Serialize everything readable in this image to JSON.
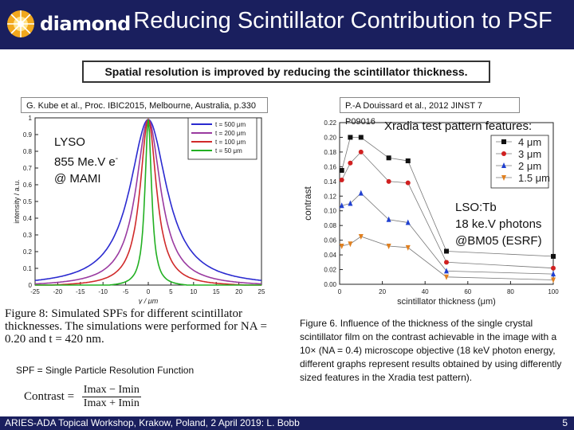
{
  "header": {
    "logo_text": "diamond",
    "title": "Reducing Scintillator Contribution to PSF"
  },
  "subtitle": "Spatial resolution is improved by reducing the scintillator thickness.",
  "left_panel": {
    "citation": "G. Kube et al., Proc. IBIC2015, Melbourne, Australia, p.330",
    "overlay_label": {
      "line1": "LYSO",
      "line2": "855 Me.V e",
      "line2_sup": "-",
      "line3": "@ MAMI"
    },
    "figure_caption": "Figure 8: Simulated SPFs for different scintillator thicknesses. The simulations were performed for NA = 0.20 and t = 420 nm.",
    "spf_definition": "SPF = Single Particle Resolution Function",
    "formula": {
      "lhs": "Contrast =",
      "numerator": "Imax − Imin",
      "denominator": "Imax + Imin"
    }
  },
  "right_panel": {
    "citation": "P.-A Douissard et al., 2012 JINST 7 P09016",
    "overlay_title": "Xradia test pattern features:",
    "overlay_label": {
      "line1": "LSO:Tb",
      "line2": "18 ke.V photons",
      "line3": "@BM05 (ESRF)"
    },
    "caption": "Figure 6. Influence of the thickness of the single crystal scintillator film on the contrast achievable in the image with a 10× (NA = 0.4) microscope objective (18 keV photon energy, different graphs represent results obtained by using differently sized features in the Xradia test pattern)."
  },
  "footer": {
    "text": "ARIES-ADA Topical Workshop, Krakow, Poland, 2 April 2019: L. Bobb",
    "page": "5"
  },
  "chart_data": [
    {
      "type": "line",
      "xlabel": "y / μm",
      "ylabel": "intensity / a.u.",
      "xlim": [
        -25,
        25
      ],
      "ylim": [
        0,
        1
      ],
      "xticks": [
        -25,
        -20,
        -15,
        -10,
        -5,
        0,
        5,
        10,
        15,
        20,
        25
      ],
      "yticks": [
        0,
        0.1,
        0.2,
        0.3,
        0.4,
        0.5,
        0.6,
        0.7,
        0.8,
        0.9,
        1
      ],
      "legend_position": "top-right",
      "series": [
        {
          "name": "t = 500 μm",
          "color": "#2a2ad0",
          "width": 4.5
        },
        {
          "name": "t = 200 μm",
          "color": "#9a3aa0",
          "width": 3.2
        },
        {
          "name": "t = 100 μm",
          "color": "#d02a2a",
          "width": 2.2
        },
        {
          "name": "t = 50 μm",
          "color": "#22b022",
          "width": 1.2
        }
      ]
    },
    {
      "type": "line",
      "xlabel": "scintillator thickness (μm)",
      "ylabel": "contrast",
      "xlim": [
        0,
        100
      ],
      "ylim": [
        0,
        0.22
      ],
      "xticks": [
        0,
        20,
        40,
        60,
        80,
        100
      ],
      "yticks": [
        0.0,
        0.02,
        0.04,
        0.06,
        0.08,
        0.1,
        0.12,
        0.14,
        0.16,
        0.18,
        0.2,
        0.22
      ],
      "x": [
        1,
        5,
        10,
        23,
        32,
        50,
        100
      ],
      "legend_position": "top-right",
      "series": [
        {
          "name": "4 μm",
          "color": "#111111",
          "marker": "square",
          "values": [
            0.155,
            0.2,
            0.2,
            0.172,
            0.168,
            0.045,
            0.038
          ]
        },
        {
          "name": "3 μm",
          "color": "#d02020",
          "marker": "circle",
          "values": [
            0.142,
            0.165,
            0.18,
            0.14,
            0.138,
            0.03,
            0.022
          ]
        },
        {
          "name": "2 μm",
          "color": "#2040d0",
          "marker": "triangle-up",
          "values": [
            0.107,
            0.11,
            0.124,
            0.088,
            0.084,
            0.018,
            0.014
          ]
        },
        {
          "name": "1.5 μm",
          "color": "#e08020",
          "marker": "triangle-down",
          "values": [
            0.052,
            0.055,
            0.065,
            0.052,
            0.05,
            0.01,
            0.006
          ]
        }
      ]
    }
  ]
}
